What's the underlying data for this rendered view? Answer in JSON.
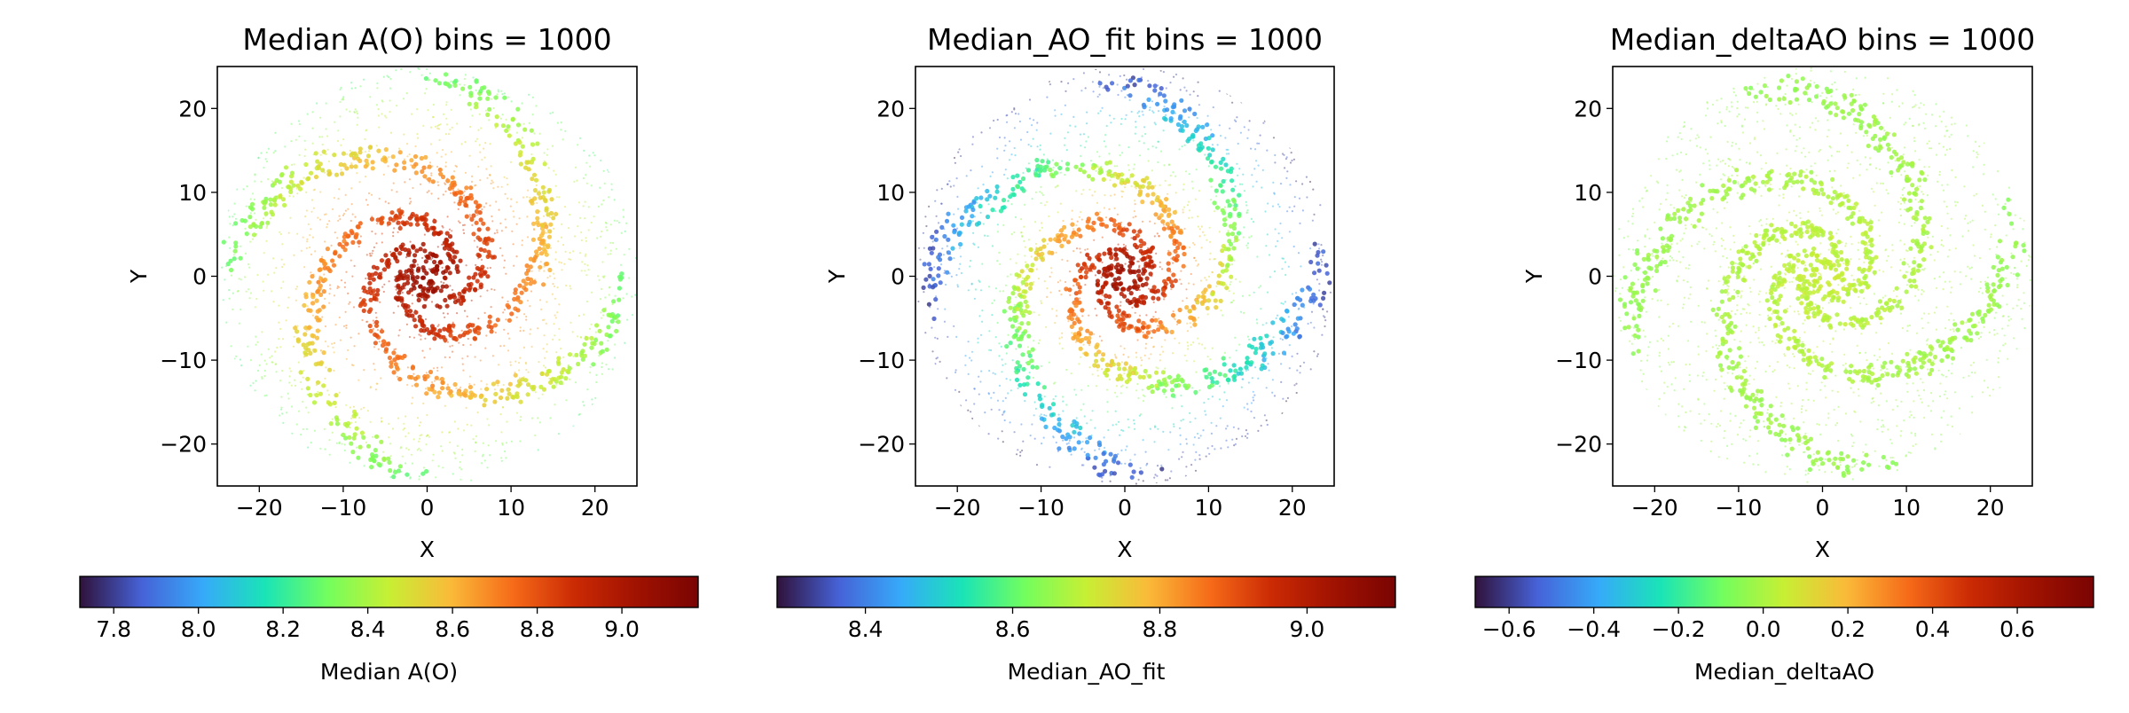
{
  "chart_data": [
    {
      "type": "scatter",
      "title": "Median A(O) bins = 1000",
      "xlabel": "X",
      "ylabel": "Y",
      "xlim": [
        -25,
        25
      ],
      "ylim": [
        -25,
        25
      ],
      "xticks": [
        -20,
        -10,
        0,
        10,
        20
      ],
      "yticks": [
        -20,
        -10,
        0,
        10,
        20
      ],
      "disk_radius": 25,
      "colorbar": {
        "label": "Median A(O)",
        "range": [
          7.72,
          9.18
        ],
        "ticks": [
          7.8,
          8.0,
          8.2,
          8.4,
          8.6,
          8.8,
          9.0
        ],
        "colormap": "turbo"
      },
      "value_profile": {
        "center": 9.1,
        "edge": 8.25
      }
    },
    {
      "type": "scatter",
      "title": "Median_AO_fit bins = 1000",
      "xlabel": "X",
      "ylabel": "Y",
      "xlim": [
        -25,
        25
      ],
      "ylim": [
        -25,
        25
      ],
      "xticks": [
        -20,
        -10,
        0,
        10,
        20
      ],
      "yticks": [
        -20,
        -10,
        0,
        10,
        20
      ],
      "disk_radius": 25,
      "colorbar": {
        "label": "Median_AO_fit",
        "range": [
          8.28,
          9.12
        ],
        "ticks": [
          8.4,
          8.6,
          8.8,
          9.0
        ],
        "colormap": "turbo"
      },
      "value_profile": {
        "center": 9.08,
        "edge": 8.3
      }
    },
    {
      "type": "scatter",
      "title": "Median_deltaAO bins = 1000",
      "xlabel": "X",
      "ylabel": "Y",
      "xlim": [
        -25,
        25
      ],
      "ylim": [
        -25,
        25
      ],
      "xticks": [
        -20,
        -10,
        0,
        10,
        20
      ],
      "yticks": [
        -20,
        -10,
        0,
        10,
        20
      ],
      "disk_radius": 25,
      "colorbar": {
        "label": "Median_deltaAO",
        "range": [
          -0.68,
          0.78
        ],
        "ticks": [
          -0.6,
          -0.4,
          -0.2,
          0.0,
          0.2,
          0.4,
          0.6
        ],
        "tick_labels": [
          "−0.6",
          "−0.4",
          "−0.2",
          "0.0",
          "0.2",
          "0.4",
          "0.6"
        ],
        "colormap": "turbo"
      },
      "value_profile": {
        "center": 0.05,
        "edge": -0.05
      }
    }
  ]
}
